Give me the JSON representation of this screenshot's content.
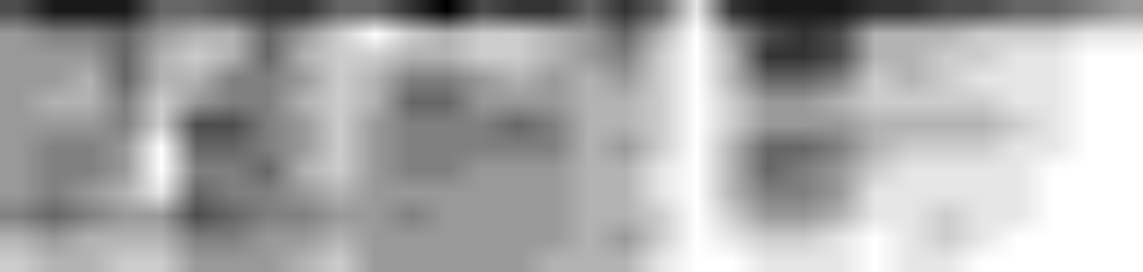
{
  "chart_data": {
    "type": "heatmap",
    "tick_labels": false,
    "color": "#000000",
    "cells": [
      [
        7,
        9,
        9,
        9,
        6,
        6,
        7,
        8,
        8,
        6,
        6,
        8,
        10,
        7,
        8,
        8,
        6,
        8,
        6,
        1,
        8,
        9,
        9,
        9,
        8,
        8,
        7,
        7,
        6,
        6,
        5,
        4
      ],
      [
        4,
        5,
        5,
        6,
        4,
        3,
        3,
        6,
        4,
        2,
        0,
        2,
        3,
        2,
        2,
        3,
        4,
        6,
        3,
        0,
        4,
        7,
        8,
        7,
        3,
        3,
        3,
        2,
        2,
        2,
        1,
        1
      ],
      [
        4,
        4,
        4,
        6,
        3,
        2,
        3,
        6,
        3,
        2,
        2,
        3,
        3,
        2,
        2,
        3,
        4,
        5,
        2,
        0,
        3,
        8,
        8,
        7,
        3,
        3,
        2,
        2,
        1,
        1,
        0,
        0
      ],
      [
        4,
        4,
        3,
        6,
        3,
        3,
        5,
        5,
        4,
        2,
        3,
        5,
        5,
        4,
        3,
        4,
        3,
        4,
        2,
        0,
        3,
        6,
        6,
        5,
        2,
        3,
        2,
        1,
        1,
        1,
        0,
        0
      ],
      [
        4,
        3,
        3,
        5,
        2,
        4,
        5,
        5,
        3,
        2,
        3,
        6,
        6,
        4,
        4,
        4,
        3,
        3,
        2,
        0,
        2,
        4,
        4,
        3,
        2,
        2,
        2,
        2,
        1,
        1,
        0,
        0
      ],
      [
        4,
        4,
        4,
        5,
        2,
        7,
        7,
        5,
        4,
        2,
        4,
        5,
        5,
        5,
        6,
        5,
        3,
        3,
        2,
        0,
        2,
        4,
        4,
        4,
        3,
        3,
        3,
        3,
        2,
        1,
        0,
        0
      ],
      [
        4,
        5,
        5,
        4,
        0,
        6,
        6,
        5,
        4,
        2,
        4,
        5,
        5,
        5,
        5,
        5,
        3,
        4,
        2,
        0,
        3,
        6,
        6,
        5,
        3,
        2,
        2,
        2,
        1,
        1,
        0,
        0
      ],
      [
        4,
        5,
        5,
        4,
        0,
        5,
        5,
        6,
        3,
        2,
        4,
        5,
        5,
        4,
        4,
        4,
        3,
        3,
        1,
        0,
        3,
        6,
        5,
        4,
        2,
        1,
        1,
        1,
        1,
        0,
        0,
        0
      ],
      [
        4,
        5,
        4,
        3,
        1,
        6,
        5,
        5,
        4,
        3,
        4,
        4,
        4,
        4,
        4,
        4,
        3,
        3,
        1,
        0,
        3,
        5,
        5,
        4,
        1,
        1,
        1,
        1,
        1,
        0,
        0,
        0
      ],
      [
        5,
        6,
        5,
        4,
        4,
        7,
        6,
        5,
        5,
        4,
        4,
        5,
        4,
        4,
        4,
        4,
        3,
        3,
        2,
        0,
        2,
        4,
        4,
        3,
        1,
        1,
        2,
        1,
        1,
        0,
        0,
        0
      ],
      [
        3,
        4,
        3,
        3,
        3,
        5,
        5,
        4,
        4,
        3,
        4,
        4,
        4,
        4,
        4,
        4,
        3,
        4,
        2,
        0,
        1,
        2,
        2,
        1,
        0,
        1,
        2,
        1,
        0,
        0,
        0,
        0
      ],
      [
        2,
        3,
        3,
        2,
        2,
        4,
        4,
        4,
        3,
        2,
        4,
        4,
        4,
        4,
        4,
        3,
        3,
        3,
        1,
        0,
        0,
        1,
        1,
        1,
        0,
        1,
        1,
        0,
        0,
        0,
        0,
        0
      ]
    ]
  }
}
